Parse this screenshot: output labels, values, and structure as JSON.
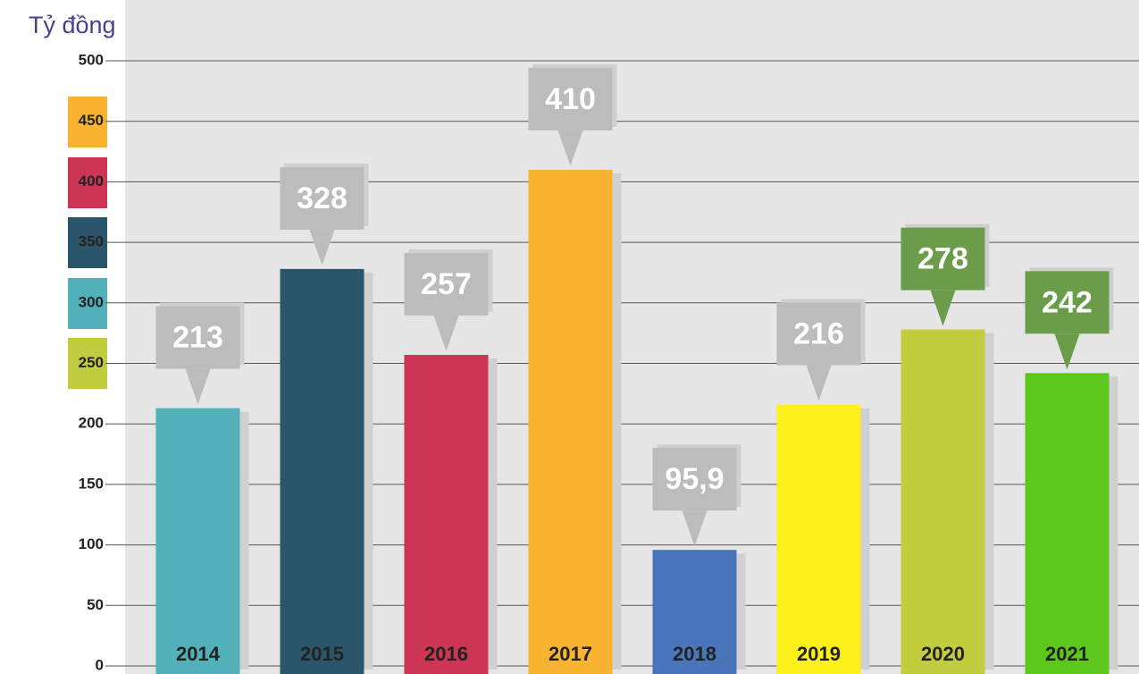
{
  "chart_data": {
    "type": "bar",
    "y_label": "Tỷ đồng",
    "categories": [
      "2014",
      "2015",
      "2016",
      "2017",
      "2018",
      "2019",
      "2020",
      "2021"
    ],
    "values": [
      213,
      328,
      257,
      410,
      95.9,
      216,
      278,
      242
    ],
    "value_labels": [
      "213",
      "328",
      "257",
      "410",
      "95,9",
      "216",
      "278",
      "242"
    ],
    "colors": [
      "#52b1b8",
      "#2b556b",
      "#cc3553",
      "#f9b331",
      "#4a75bb",
      "#fdf01b",
      "#c1cd3e",
      "#5cc81c"
    ],
    "label_colors": [
      "#bcbcbc",
      "#bcbcbc",
      "#bcbcbc",
      "#bcbcbc",
      "#bcbcbc",
      "#bcbcbc",
      "#6a9c4a",
      "#6a9c4a"
    ],
    "ylim": [
      0,
      500
    ],
    "yticks": [
      0,
      50,
      100,
      150,
      200,
      250,
      300,
      350,
      400,
      450,
      500
    ],
    "grid": true
  }
}
